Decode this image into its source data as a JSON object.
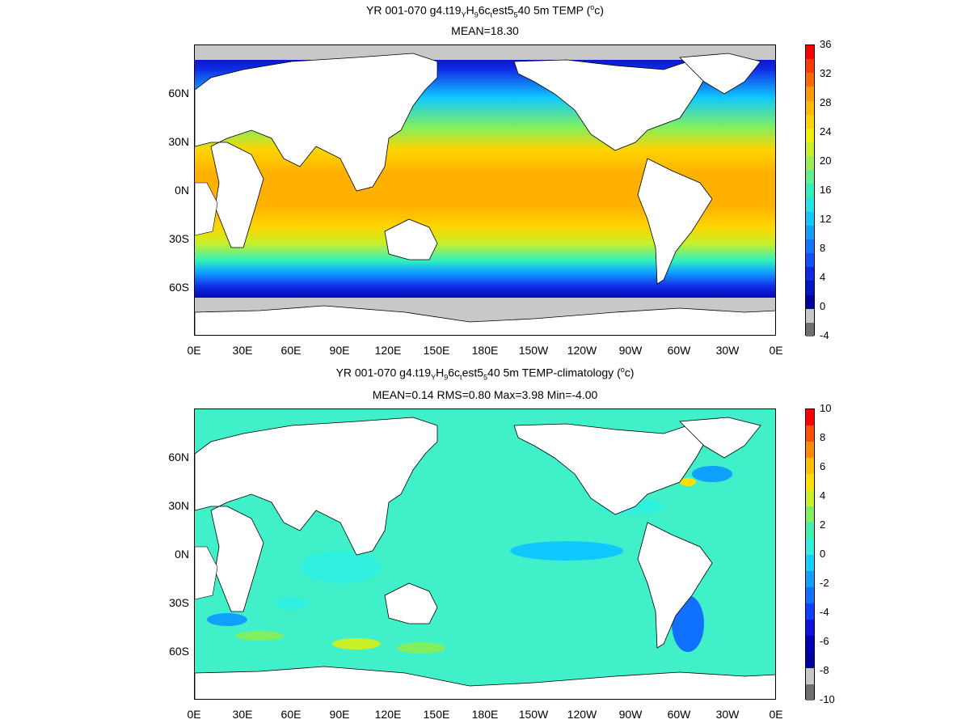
{
  "top": {
    "title_pre": "YR 001-070 g4.t19",
    "title_sub1": "Y",
    "title_mid1": "H",
    "title_sub2": "9",
    "title_mid2": "6c",
    "title_sub3": "t",
    "title_mid3": "est5",
    "title_sub4": "5",
    "title_post": "40 5m TEMP (",
    "title_sup": "o",
    "title_end": "c)",
    "subtitle": "MEAN=18.30",
    "colorbar_ticks": [
      "36",
      "32",
      "28",
      "24",
      "20",
      "16",
      "12",
      "8",
      "4",
      "0",
      "-4"
    ],
    "colorbar_colors": [
      "#ff0000",
      "#ff3a00",
      "#ff6a00",
      "#ff9a00",
      "#ffba00",
      "#ffd400",
      "#f0f000",
      "#c8f028",
      "#9af050",
      "#60f090",
      "#30f0c0",
      "#20e6e6",
      "#10c8ff",
      "#10a0ff",
      "#1078ff",
      "#1050ff",
      "#1028e6",
      "#0014c8",
      "#0000a0",
      "#c8c8c8",
      "#707070"
    ]
  },
  "bottom": {
    "title_pre": "YR 001-070 g4.t19",
    "title_sub1": "Y",
    "title_mid1": "H",
    "title_sub2": "9",
    "title_mid2": "6c",
    "title_sub3": "t",
    "title_mid3": "est5",
    "title_sub4": "5",
    "title_post": "40 5m TEMP-climatology (",
    "title_sup": "o",
    "title_end": "c)",
    "subtitle": "MEAN=0.14   RMS=0.80   Max=3.98   Min=-4.00",
    "colorbar_ticks": [
      "10",
      "8",
      "6",
      "4",
      "2",
      "0",
      "-2",
      "-4",
      "-6",
      "-8",
      "-10"
    ],
    "colorbar_colors": [
      "#ff0000",
      "#ff5000",
      "#ff8c00",
      "#ffc000",
      "#ffe000",
      "#c8f028",
      "#80f060",
      "#40f0b0",
      "#30f0e0",
      "#10d0ff",
      "#10a0ff",
      "#1070ff",
      "#1040ff",
      "#1010e0",
      "#0000b4",
      "#0000a0",
      "#c8c8c8",
      "#707070"
    ]
  },
  "lat_labels": [
    "60N",
    "30N",
    "0N",
    "30S",
    "60S"
  ],
  "lon_labels": [
    "0E",
    "30E",
    "60E",
    "90E",
    "120E",
    "150E",
    "180E",
    "150W",
    "120W",
    "90W",
    "60W",
    "30W",
    "0E"
  ],
  "colors": {
    "land": "#ffffff",
    "ice": "#c8c8c8",
    "ocean_mean": "#00e6ff",
    "anomaly_base": "#40f0c8"
  }
}
